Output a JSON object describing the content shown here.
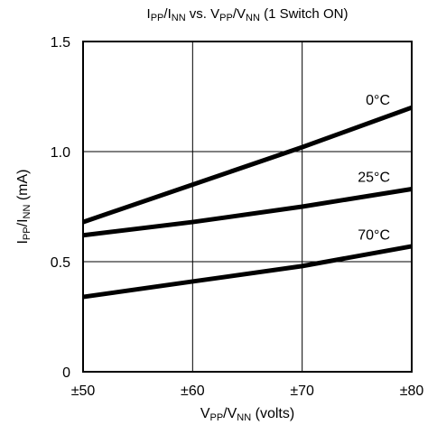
{
  "chart_data": {
    "type": "line",
    "title": {
      "parts": [
        {
          "text": "I",
          "sub": false
        },
        {
          "text": "PP",
          "sub": true
        },
        {
          "text": "/I",
          "sub": false
        },
        {
          "text": "NN",
          "sub": true
        },
        {
          "text": " vs. V",
          "sub": false
        },
        {
          "text": "PP",
          "sub": true
        },
        {
          "text": "/V",
          "sub": false
        },
        {
          "text": "NN",
          "sub": true
        },
        {
          "text": " (1 Switch ON)",
          "sub": false
        }
      ]
    },
    "xlabel": {
      "parts": [
        {
          "text": "V",
          "sub": false
        },
        {
          "text": "PP",
          "sub": true
        },
        {
          "text": "/V",
          "sub": false
        },
        {
          "text": "NN",
          "sub": true
        },
        {
          "text": " (volts)",
          "sub": false
        }
      ]
    },
    "ylabel": {
      "parts": [
        {
          "text": "I",
          "sub": false
        },
        {
          "text": "PP",
          "sub": true
        },
        {
          "text": "/I",
          "sub": false
        },
        {
          "text": "NN",
          "sub": true
        },
        {
          "text": " (mA)",
          "sub": false
        }
      ]
    },
    "xlim": [
      50,
      80
    ],
    "ylim": [
      0,
      1.5
    ],
    "x_ticks": [
      {
        "value": 50,
        "label": "±50"
      },
      {
        "value": 60,
        "label": "±60"
      },
      {
        "value": 70,
        "label": "±70"
      },
      {
        "value": 80,
        "label": "±80"
      }
    ],
    "y_ticks": [
      {
        "value": 0,
        "label": "0"
      },
      {
        "value": 0.5,
        "label": "0.5"
      },
      {
        "value": 1.0,
        "label": "1.0"
      },
      {
        "value": 1.5,
        "label": "1.5"
      }
    ],
    "grid": true,
    "series": [
      {
        "name": "0°C",
        "x": [
          50,
          60,
          70,
          80
        ],
        "y": [
          0.68,
          0.85,
          1.02,
          1.2
        ]
      },
      {
        "name": "25°C",
        "x": [
          50,
          60,
          70,
          80
        ],
        "y": [
          0.62,
          0.68,
          0.75,
          0.83
        ]
      },
      {
        "name": "70°C",
        "x": [
          50,
          60,
          70,
          80
        ],
        "y": [
          0.34,
          0.41,
          0.48,
          0.57
        ]
      }
    ],
    "line_color": "#000000"
  }
}
